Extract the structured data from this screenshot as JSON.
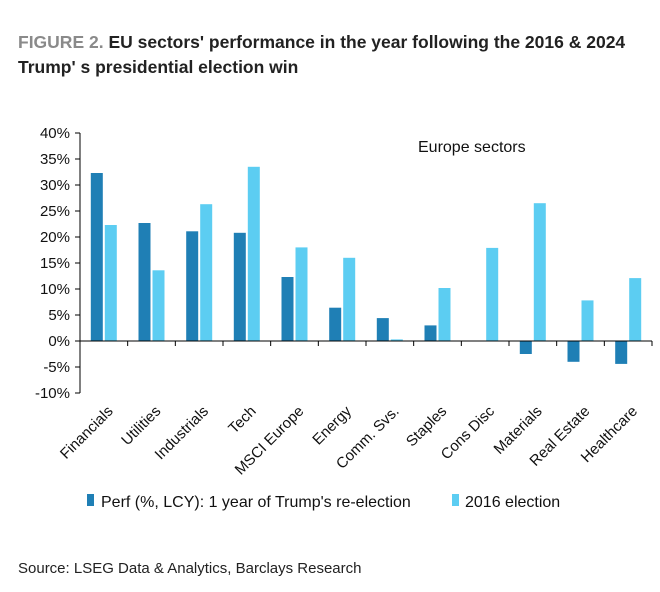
{
  "header": {
    "title_prefix": "FIGURE 2.",
    "title": "EU sectors' performance in the year following the 2016 & 2024 Trump' s presidential election win"
  },
  "footer": {
    "source": "Source: LSEG Data & Analytics, Barclays Research"
  },
  "chart_data": {
    "type": "bar",
    "annotation": "Europe sectors",
    "categories": [
      "Financials",
      "Utilities",
      "Industrials",
      "Tech",
      "MSCI Europe",
      "Energy",
      "Comm. Svs.",
      "Staples",
      "Cons Disc",
      "Materials",
      "Real Estate",
      "Healthcare"
    ],
    "series": [
      {
        "name": "Perf (%, LCY): 1 year of Trump's re-election",
        "color": "#1f7fb5",
        "values": [
          32.3,
          22.7,
          21.1,
          20.8,
          12.3,
          6.4,
          4.4,
          3.0,
          0.1,
          -2.5,
          -4.0,
          -4.4
        ]
      },
      {
        "name": "2016 election",
        "color": "#5ccdf2",
        "values": [
          22.3,
          13.6,
          26.3,
          33.5,
          18.0,
          16.0,
          0.3,
          10.2,
          17.9,
          26.5,
          7.8,
          12.1
        ]
      }
    ],
    "ylim": [
      -10,
      40
    ],
    "yticks": [
      "40%",
      "35%",
      "30%",
      "25%",
      "20%",
      "15%",
      "10%",
      "5%",
      "0%",
      "-5%",
      "-10%"
    ],
    "ytick_values": [
      40,
      35,
      30,
      25,
      20,
      15,
      10,
      5,
      0,
      -5,
      -10
    ],
    "legend_position": "bottom",
    "grid": false
  }
}
